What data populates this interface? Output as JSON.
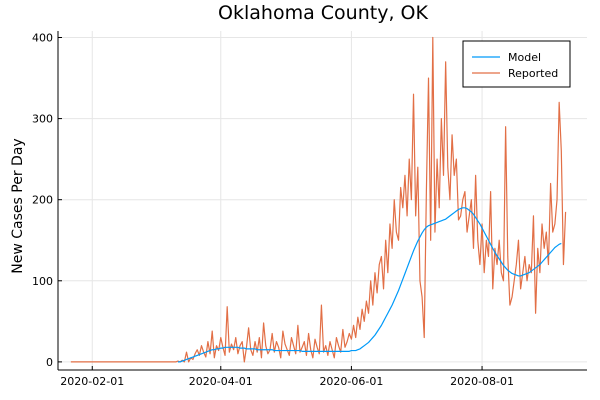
{
  "chart_data": {
    "type": "line",
    "title": "Oklahoma County, OK",
    "xlabel": "",
    "ylabel": "New Cases Per Day",
    "x_start": "2020-01-22",
    "x_ticks": [
      "2020-02-01",
      "2020-04-01",
      "2020-06-01",
      "2020-08-01"
    ],
    "y_ticks": [
      0,
      100,
      200,
      300,
      400
    ],
    "xlim": [
      "2020-01-16",
      "2020-09-19"
    ],
    "ylim": [
      -10,
      408
    ],
    "grid": true,
    "legend_position": "top-right",
    "series": [
      {
        "name": "Model",
        "color": "#009af9",
        "x_range": [
          "2020-03-12",
          "2020-09-07"
        ],
        "values": [
          0,
          0,
          1,
          2,
          3,
          4,
          5,
          6,
          7,
          8,
          9,
          10,
          11,
          12,
          13,
          14,
          15,
          15,
          16,
          16,
          17,
          17,
          18,
          18,
          18,
          18,
          18,
          18,
          18,
          17,
          17,
          17,
          16,
          16,
          16,
          16,
          16,
          15,
          15,
          15,
          15,
          15,
          15,
          15,
          15,
          14,
          14,
          14,
          14,
          14,
          14,
          14,
          14,
          14,
          14,
          14,
          14,
          14,
          13,
          13,
          13,
          13,
          13,
          13,
          13,
          13,
          13,
          13,
          13,
          13,
          13,
          13,
          13,
          13,
          13,
          13,
          13,
          13,
          13,
          13,
          13,
          14,
          14,
          14,
          15,
          16,
          18,
          20,
          22,
          24,
          27,
          30,
          33,
          37,
          41,
          45,
          50,
          55,
          60,
          65,
          70,
          76,
          82,
          88,
          95,
          102,
          109,
          116,
          123,
          130,
          137,
          143,
          149,
          154,
          159,
          163,
          166,
          168,
          169,
          170,
          171,
          172,
          173,
          174,
          175,
          176,
          178,
          180,
          182,
          184,
          186,
          188,
          189,
          190,
          190,
          189,
          187,
          185,
          182,
          178,
          174,
          170,
          165,
          160,
          155,
          150,
          145,
          140,
          135,
          131,
          127,
          123,
          119,
          116,
          113,
          111,
          109,
          108,
          107,
          106,
          106,
          107,
          108,
          109,
          110,
          112,
          114,
          116,
          118,
          120,
          123,
          126,
          129,
          132,
          135,
          138,
          141,
          143,
          145,
          146
        ]
      },
      {
        "name": "Reported",
        "color": "#e26f46",
        "x_range": [
          "2020-01-22",
          "2020-09-09"
        ],
        "values": [
          0,
          0,
          0,
          0,
          0,
          0,
          0,
          0,
          0,
          0,
          0,
          0,
          0,
          0,
          0,
          0,
          0,
          0,
          0,
          0,
          0,
          0,
          0,
          0,
          0,
          0,
          0,
          0,
          0,
          0,
          0,
          0,
          0,
          0,
          0,
          0,
          0,
          0,
          0,
          0,
          0,
          0,
          0,
          0,
          0,
          0,
          0,
          0,
          0,
          0,
          1,
          0,
          2,
          0,
          12,
          0,
          5,
          3,
          10,
          15,
          8,
          20,
          12,
          6,
          25,
          10,
          38,
          5,
          20,
          14,
          30,
          18,
          8,
          68,
          12,
          22,
          15,
          30,
          10,
          20,
          25,
          0,
          18,
          42,
          15,
          8,
          25,
          12,
          30,
          5,
          48,
          20,
          10,
          15,
          35,
          12,
          25,
          18,
          5,
          38,
          22,
          15,
          8,
          30,
          20,
          10,
          45,
          12,
          18,
          25,
          8,
          35,
          15,
          5,
          28,
          18,
          10,
          70,
          12,
          20,
          8,
          25,
          15,
          5,
          30,
          20,
          12,
          40,
          18,
          25,
          35,
          28,
          45,
          30,
          55,
          40,
          65,
          50,
          75,
          60,
          100,
          70,
          110,
          85,
          120,
          130,
          90,
          150,
          110,
          170,
          140,
          200,
          160,
          150,
          215,
          190,
          230,
          180,
          250,
          200,
          330,
          180,
          240,
          100,
          80,
          30,
          210,
          350,
          150,
          400,
          160,
          250,
          190,
          300,
          230,
          370,
          240,
          200,
          280,
          230,
          250,
          175,
          180,
          200,
          210,
          160,
          180,
          200,
          140,
          230,
          150,
          120,
          170,
          110,
          150,
          130,
          210,
          90,
          140,
          120,
          150,
          110,
          100,
          290,
          130,
          70,
          80,
          100,
          120,
          150,
          90,
          110,
          130,
          100,
          120,
          110,
          180,
          60,
          140,
          110,
          170,
          140,
          160,
          120,
          220,
          160,
          170,
          200,
          320,
          260,
          120,
          185
        ]
      }
    ]
  }
}
